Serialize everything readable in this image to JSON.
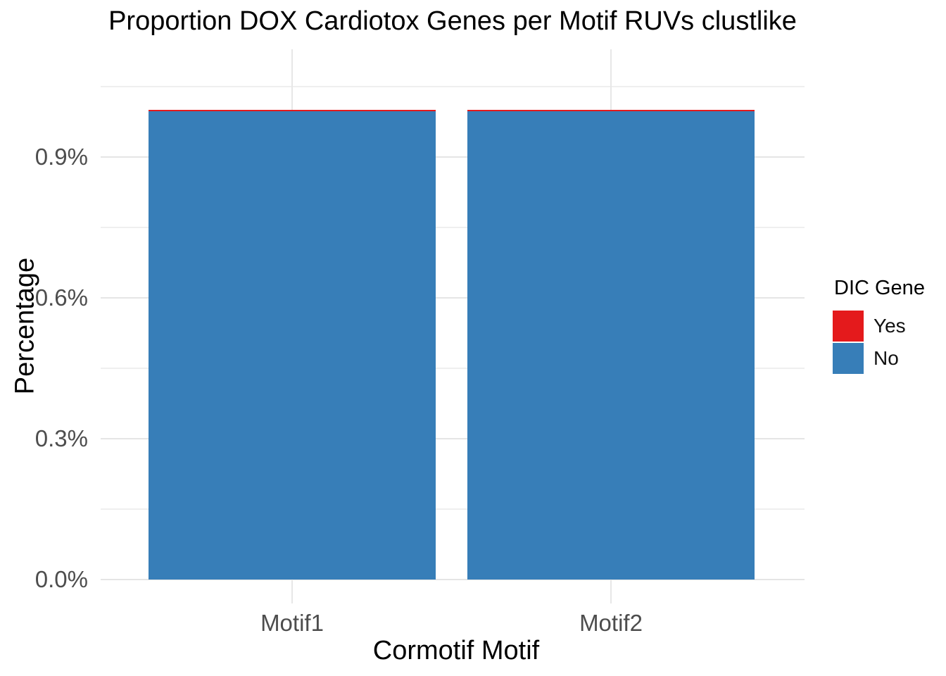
{
  "chart_data": {
    "type": "bar",
    "stacked": true,
    "title": "Proportion DOX Cardiotox Genes per Motif RUVs clustlike",
    "xlabel": "Cormotif Motif",
    "ylabel": "Percentage",
    "categories": [
      "Motif1",
      "Motif2"
    ],
    "series": [
      {
        "name": "Yes",
        "color": "#E41A1C",
        "values": [
          0.003,
          0.003
        ]
      },
      {
        "name": "No",
        "color": "#377EB8",
        "values": [
          0.997,
          0.997
        ]
      }
    ],
    "bar_totals": [
      1.0,
      1.0
    ],
    "y_ticks": [
      {
        "value": 0.0,
        "label": "0.0%"
      },
      {
        "value": 0.3,
        "label": "0.3%"
      },
      {
        "value": 0.6,
        "label": "0.6%"
      },
      {
        "value": 0.9,
        "label": "0.9%"
      }
    ],
    "ylim": [
      -0.051,
      1.13
    ],
    "grid": {
      "major": true,
      "minor": true
    },
    "legend": {
      "title": "DIC Gene",
      "position": "right",
      "entries": [
        {
          "label": "Yes",
          "color": "#E41A1C"
        },
        {
          "label": "No",
          "color": "#377EB8"
        }
      ]
    },
    "colors": {
      "background": "#FFFFFF",
      "grid_major": "#E5E5E5",
      "grid_minor": "#EFEFEF",
      "tick_text": "#4D4D4D",
      "title_text": "#000000",
      "bar_no": "#377EB8",
      "bar_yes": "#E41A1C"
    }
  }
}
